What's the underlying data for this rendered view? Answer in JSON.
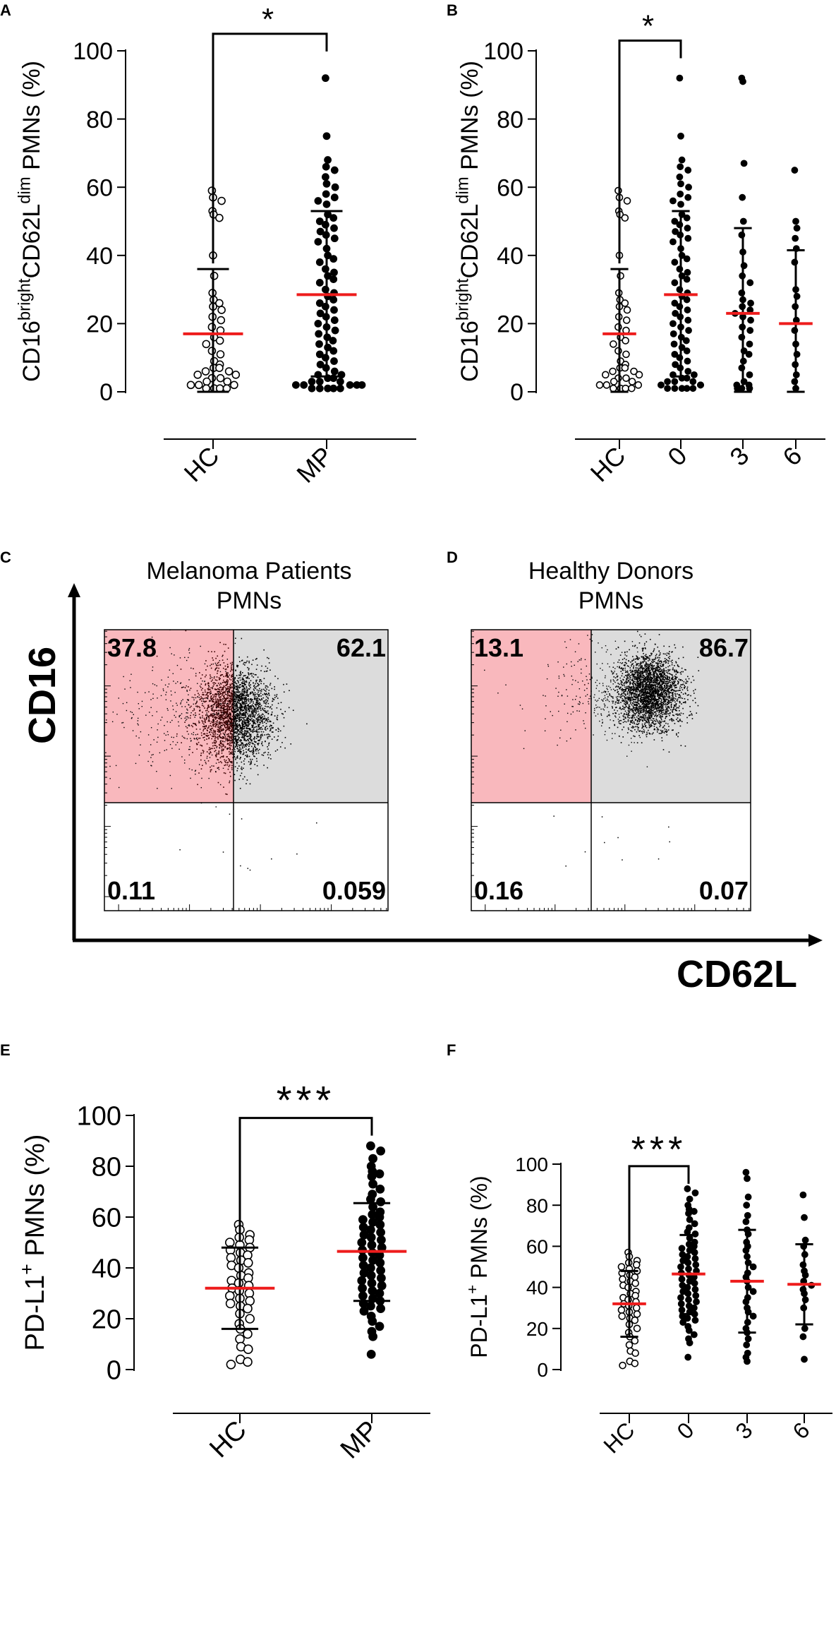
{
  "styles": {
    "mean_color": "#ee1c1c",
    "gate_left_color": "#f9b8bd",
    "gate_right_color": "#dcdcdc",
    "ink": "#000000"
  },
  "chart_data": [
    {
      "panel": "A",
      "type": "scatter",
      "ylabel": {
        "pre": "CD16",
        "sup1": "bright",
        "mid": "CD62L",
        "sup2": "dim",
        "post": " PMNs (%)"
      },
      "ylim": [
        0,
        100
      ],
      "yticks": [
        "0",
        "20",
        "40",
        "60",
        "80",
        "100"
      ],
      "categories": [
        "HC",
        "MP"
      ],
      "significance": {
        "label": "*",
        "from": 0,
        "to": 1,
        "y": 105
      },
      "groups": [
        {
          "name": "HC",
          "filled": false,
          "mean": 17,
          "sd": [
            0,
            36
          ],
          "values": [
            59,
            57,
            56,
            53,
            52,
            51,
            40,
            34,
            29,
            27,
            26,
            25,
            24,
            22,
            21,
            19,
            18,
            16,
            15,
            14,
            12,
            11,
            9,
            8,
            7,
            7,
            6,
            6,
            5,
            5,
            4,
            4,
            3,
            3,
            2,
            2,
            2,
            1,
            1,
            1,
            1
          ]
        },
        {
          "name": "MP",
          "filled": true,
          "mean": 28.5,
          "sd": [
            4.5,
            53
          ],
          "values": [
            92,
            75,
            68,
            66,
            65,
            63,
            61,
            60,
            58,
            57,
            56,
            55,
            52,
            51,
            50,
            49,
            48,
            47,
            46,
            45,
            44,
            42,
            40,
            39,
            38,
            36,
            35,
            34,
            33,
            32,
            30,
            29,
            28,
            27,
            26,
            25,
            24,
            23,
            22,
            21,
            20,
            19,
            18,
            17,
            16,
            15,
            14,
            13,
            12,
            11,
            10,
            9,
            8,
            7,
            6,
            5,
            5,
            4,
            4,
            3,
            3,
            3,
            2,
            2,
            2,
            2,
            2,
            1,
            1,
            1,
            1,
            1
          ]
        }
      ]
    },
    {
      "panel": "B",
      "type": "scatter",
      "ylabel": {
        "pre": "CD16",
        "sup1": "bright",
        "mid": "CD62L",
        "sup2": "dim",
        "post": " PMNs (%)"
      },
      "ylim": [
        0,
        100
      ],
      "yticks": [
        "0",
        "20",
        "40",
        "60",
        "80",
        "100"
      ],
      "categories": [
        "HC",
        "0",
        "3",
        "6"
      ],
      "significance": {
        "label": "*",
        "from": 0,
        "to": 1,
        "y": 103
      },
      "groups": [
        {
          "name": "HC",
          "filled": false,
          "mean": 17,
          "sd": [
            0,
            36
          ],
          "values": [
            59,
            57,
            56,
            53,
            52,
            51,
            40,
            34,
            29,
            27,
            26,
            25,
            24,
            22,
            21,
            19,
            18,
            16,
            15,
            14,
            12,
            11,
            9,
            8,
            7,
            7,
            6,
            6,
            5,
            5,
            4,
            4,
            3,
            3,
            2,
            2,
            2,
            1,
            1,
            1,
            1
          ]
        },
        {
          "name": "0",
          "filled": true,
          "mean": 28.5,
          "sd": [
            4.5,
            53
          ],
          "values": [
            92,
            75,
            68,
            66,
            65,
            63,
            61,
            60,
            58,
            57,
            56,
            55,
            52,
            51,
            50,
            49,
            48,
            47,
            46,
            45,
            44,
            42,
            40,
            39,
            38,
            36,
            35,
            34,
            33,
            32,
            30,
            29,
            28,
            27,
            26,
            25,
            24,
            23,
            22,
            21,
            20,
            19,
            18,
            17,
            16,
            15,
            14,
            13,
            12,
            11,
            10,
            9,
            8,
            7,
            6,
            5,
            5,
            4,
            4,
            3,
            3,
            3,
            2,
            2,
            2,
            2,
            2,
            1,
            1,
            1,
            1,
            1
          ]
        },
        {
          "name": "3",
          "filled": true,
          "mean": 23,
          "sd": [
            0,
            48
          ],
          "values": [
            92,
            91,
            67,
            57,
            50,
            46,
            41,
            37,
            34,
            32,
            29,
            27,
            26,
            25,
            24,
            23,
            22,
            21,
            19,
            18,
            16,
            14,
            12,
            11,
            9,
            7,
            5,
            3,
            2,
            2,
            1,
            1,
            1
          ]
        },
        {
          "name": "6",
          "filled": true,
          "mean": 20,
          "sd": [
            0,
            41.5
          ],
          "values": [
            65,
            50,
            48,
            45,
            42,
            38,
            30,
            28,
            25,
            21,
            18,
            14,
            11,
            8,
            5,
            3,
            1
          ]
        }
      ]
    },
    {
      "panel": "C",
      "type": "flow-cytometry",
      "title": [
        "Melanoma Patients",
        "PMNs"
      ],
      "xlabel": "CD62L",
      "ylabel": "CD16",
      "quadrants": {
        "upper_left": "37.8",
        "upper_right": "62.1",
        "lower_left": "0.11",
        "lower_right": "0.059"
      },
      "cluster_center": [
        0.46,
        0.3
      ]
    },
    {
      "panel": "D",
      "type": "flow-cytometry",
      "title": [
        "Healthy Donors",
        "PMNs"
      ],
      "xlabel": "CD62L",
      "ylabel": "CD16",
      "quadrants": {
        "upper_left": "13.1",
        "upper_right": "86.7",
        "lower_left": "0.16",
        "lower_right": "0.07"
      },
      "cluster_center": [
        0.64,
        0.22
      ]
    },
    {
      "panel": "E",
      "type": "scatter",
      "ylabel": {
        "pre": "PD-L1",
        "sup1": "+",
        "post": " PMNs (%)"
      },
      "ylim": [
        0,
        100
      ],
      "yticks": [
        "0",
        "20",
        "40",
        "60",
        "80",
        "100"
      ],
      "categories": [
        "HC",
        "MP"
      ],
      "significance": {
        "label": "***",
        "from": 0,
        "to": 1,
        "y": 99
      },
      "groups": [
        {
          "name": "HC",
          "filled": false,
          "mean": 32,
          "sd": [
            16,
            48
          ],
          "values": [
            57,
            55,
            53,
            52,
            51,
            50,
            49,
            48,
            47,
            46,
            45,
            44,
            43,
            42,
            41,
            40,
            38,
            37,
            36,
            35,
            34,
            33,
            32,
            31,
            30,
            29,
            28,
            27,
            26,
            25,
            24,
            22,
            20,
            18,
            16,
            14,
            12,
            9,
            8,
            4,
            3,
            2
          ]
        },
        {
          "name": "MP",
          "filled": true,
          "mean": 46.5,
          "sd": [
            27,
            65.5
          ],
          "values": [
            88,
            86,
            83,
            80,
            78,
            77,
            76,
            73,
            71,
            69,
            67,
            66,
            64,
            62,
            61,
            60,
            59,
            58,
            57,
            56,
            55,
            54,
            53,
            52,
            51,
            50,
            49,
            48,
            47,
            46,
            45,
            44,
            43,
            42,
            41,
            40,
            39,
            38,
            37,
            36,
            35,
            34,
            33,
            32,
            31,
            30,
            29,
            28,
            27,
            26,
            25,
            24,
            23,
            21,
            19,
            17,
            15,
            13,
            6
          ]
        }
      ]
    },
    {
      "panel": "F",
      "type": "scatter",
      "ylabel": {
        "pre": "PD-L1",
        "sup1": "+",
        "post": " PMNs (%)"
      },
      "ylim": [
        0,
        100
      ],
      "yticks": [
        "0",
        "20",
        "40",
        "60",
        "80",
        "100"
      ],
      "categories": [
        "HC",
        "0",
        "3",
        "6"
      ],
      "significance": {
        "label": "***",
        "from": 0,
        "to": 1,
        "y": 99
      },
      "groups": [
        {
          "name": "HC",
          "filled": false,
          "mean": 32,
          "sd": [
            16,
            48
          ],
          "values": [
            57,
            55,
            53,
            52,
            51,
            50,
            49,
            48,
            47,
            46,
            45,
            44,
            43,
            42,
            41,
            40,
            38,
            37,
            36,
            35,
            34,
            33,
            32,
            31,
            30,
            29,
            28,
            27,
            26,
            25,
            24,
            22,
            20,
            18,
            16,
            14,
            12,
            9,
            8,
            4,
            3,
            2
          ]
        },
        {
          "name": "0",
          "filled": true,
          "mean": 46.5,
          "sd": [
            27,
            65.5
          ],
          "values": [
            88,
            86,
            83,
            80,
            78,
            77,
            76,
            73,
            71,
            69,
            67,
            66,
            64,
            62,
            61,
            60,
            59,
            58,
            57,
            56,
            55,
            54,
            53,
            52,
            51,
            50,
            49,
            48,
            47,
            46,
            45,
            44,
            43,
            42,
            41,
            40,
            39,
            38,
            37,
            36,
            35,
            34,
            33,
            32,
            31,
            30,
            29,
            28,
            27,
            26,
            25,
            24,
            23,
            21,
            19,
            17,
            15,
            13,
            6
          ]
        },
        {
          "name": "3",
          "filled": true,
          "mean": 43,
          "sd": [
            18,
            68
          ],
          "values": [
            96,
            93,
            84,
            80,
            75,
            72,
            68,
            66,
            62,
            60,
            58,
            55,
            52,
            50,
            47,
            45,
            43,
            40,
            38,
            35,
            33,
            30,
            28,
            26,
            23,
            20,
            18,
            15,
            12,
            8,
            6,
            4
          ]
        },
        {
          "name": "6",
          "filled": true,
          "mean": 41.5,
          "sd": [
            22,
            61
          ],
          "values": [
            85,
            74,
            63,
            60,
            56,
            51,
            48,
            46,
            43,
            41,
            39,
            37,
            34,
            30,
            20,
            16,
            5
          ]
        }
      ]
    }
  ]
}
